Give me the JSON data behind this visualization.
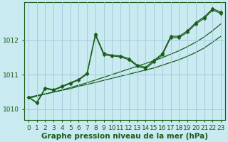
{
  "xlabel": "Graphe pression niveau de la mer (hPa)",
  "background_color": "#c8eaf0",
  "grid_color": "#a0c8d8",
  "line_color": "#1a5c1a",
  "marker_color": "#1a5c1a",
  "ylim": [
    1009.7,
    1013.1
  ],
  "xlim": [
    -0.5,
    23.5
  ],
  "yticks": [
    1010,
    1011,
    1012
  ],
  "xticks": [
    0,
    1,
    2,
    3,
    4,
    5,
    6,
    7,
    8,
    9,
    10,
    11,
    12,
    13,
    14,
    15,
    16,
    17,
    18,
    19,
    20,
    21,
    22,
    23
  ],
  "series_wavy1": [
    1010.35,
    1010.2,
    1010.62,
    1010.57,
    1010.67,
    1010.77,
    1010.87,
    1011.05,
    1012.18,
    1011.62,
    1011.57,
    1011.55,
    1011.47,
    1011.28,
    1011.22,
    1011.42,
    1011.62,
    1012.12,
    1012.12,
    1012.28,
    1012.52,
    1012.68,
    1012.92,
    1012.82
  ],
  "series_wavy2": [
    1010.35,
    1010.18,
    1010.6,
    1010.55,
    1010.65,
    1010.75,
    1010.85,
    1011.02,
    1012.15,
    1011.58,
    1011.55,
    1011.52,
    1011.44,
    1011.25,
    1011.18,
    1011.38,
    1011.58,
    1012.08,
    1012.08,
    1012.24,
    1012.48,
    1012.64,
    1012.88,
    1012.78
  ],
  "series_trend1": [
    1010.35,
    1010.4,
    1010.45,
    1010.5,
    1010.55,
    1010.6,
    1010.67,
    1010.72,
    1010.78,
    1010.84,
    1010.9,
    1010.96,
    1011.02,
    1011.08,
    1011.14,
    1011.2,
    1011.28,
    1011.36,
    1011.44,
    1011.54,
    1011.65,
    1011.78,
    1011.95,
    1012.12
  ],
  "series_trend2": [
    1010.32,
    1010.38,
    1010.44,
    1010.5,
    1010.56,
    1010.63,
    1010.7,
    1010.77,
    1010.85,
    1010.93,
    1011.01,
    1011.09,
    1011.17,
    1011.25,
    1011.33,
    1011.41,
    1011.5,
    1011.6,
    1011.7,
    1011.82,
    1011.95,
    1012.1,
    1012.28,
    1012.48
  ],
  "marker_size": 2.5,
  "linewidth_wavy": 0.9,
  "linewidth_trend": 0.9,
  "font_color": "#1a5c1a",
  "xlabel_fontsize": 7.5,
  "tick_fontsize": 6.5
}
